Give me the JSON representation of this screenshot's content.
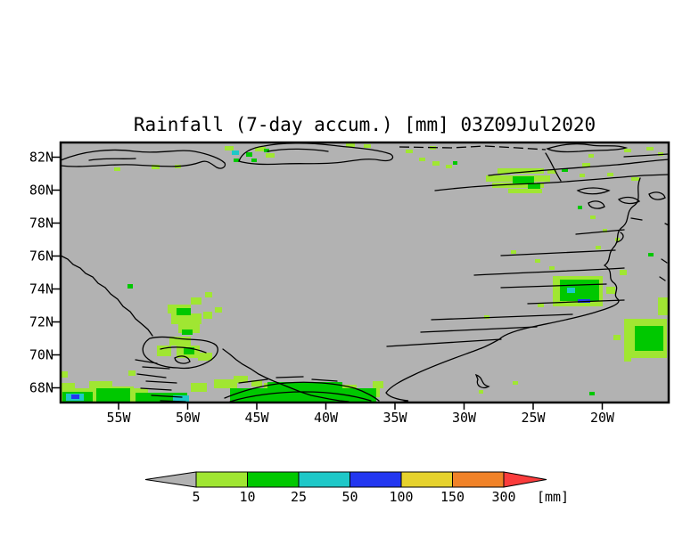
{
  "title": "Rainfall (7-day accum.) [mm] 03Z09Jul2020",
  "chart_data": {
    "type": "heatmap",
    "title": "Rainfall (7-day accum.) [mm] 03Z09Jul2020",
    "variable": "Rainfall (7-day accum.)",
    "units": "mm",
    "valid_time": "03Z09Jul2020",
    "x_axis": {
      "ticks": [
        "55W",
        "50W",
        "45W",
        "40W",
        "35W",
        "30W",
        "25W",
        "20W"
      ]
    },
    "y_axis": {
      "ticks": [
        "82N",
        "80N",
        "78N",
        "76N",
        "74N",
        "72N",
        "70N",
        "68N"
      ]
    },
    "grid": "off",
    "legend_position": "bottom",
    "colorbar": {
      "levels": [
        5,
        10,
        25,
        50,
        100,
        150,
        300
      ],
      "labels": [
        "5",
        "10",
        "25",
        "50",
        "100",
        "150",
        "300"
      ],
      "unit_label": "[mm]",
      "below_color": "#b2b2b2",
      "bin_colors": [
        "#a0e632",
        "#00c800",
        "#1ec8c8",
        "#2337f0",
        "#e6d22d",
        "#f08228"
      ],
      "above_color": "#fa3c3c",
      "outline_color": "#000000"
    },
    "background_color": "#b2b2b2",
    "coastline_color": "#000000"
  },
  "map": {
    "bg": "#b2b2b2",
    "coast_color": "#000000",
    "coastlines": [
      "M68,180 C92,170 122,166 152,170 C178,173 202,167 218,170 C234,173 247,178 252,183 C254,187 249,191 243,188 C237,184 232,179 225,182 C204,190 176,186 148,185 C118,184 92,189 68,186",
      "M100,180 C118,177 136,179 152,178",
      "M268,181 C271,172 281,166 296,164 C316,160 346,160 371,163 C396,166 421,167 438,173 C444,177 439,182 427,180 C413,177 399,180 384,182 C364,185 339,183 317,184 C299,185 281,185 268,181 Z",
      "M300,170 C322,166 348,167 368,170",
      "M614,167 C630,162 646,160 663,163 C676,165 690,162 702,166 C688,170 668,168 650,170 C636,171 622,171 614,167 Z",
      "M612,172 C618,181 622,192 629,203",
      "M488,214 C522,210 562,207 602,206 C642,204 682,200 722,197 L750,196",
      "M548,197 C592,192 642,189 692,185 C712,183 736,180 750,179",
      "M700,176 L750,173",
      "M648,214 C658,210 672,210 683,214 C672,219 656,219 648,214 Z",
      "M694,224 C702,220 712,221 717,226 C710,230 698,229 694,224 Z",
      "M660,228 C668,224 676,226 678,232 C671,236 661,234 660,228 Z",
      "M718,200 C712,214 721,224 711,231 C701,238 707,248 698,255 C689,262 696,270 688,278 C681,286 686,292 678,298",
      "M700,258 L646,263",
      "M690,281 L562,287",
      "M700,301 C650,304 590,306 532,309",
      "M680,319 L562,323",
      "M700,337 L592,341",
      "M642,353 L484,359",
      "M602,367 L472,373",
      "M562,381 L434,389",
      "M678,298 C690,306 680,312 689,318 C696,325 686,330 693,336 C699,342 676,348 663,352 C642,358 621,362 602,366 C582,370 566,375 560,381 C551,386 545,389 540,391",
      "M540,391 C519,399 489,409 464,421 C449,428 438,434 433,441 C437,447 449,449 458,450 L447,452",
      "M534,421 C543,424 538,431 548,434 C541,438 533,433 536,426 Z",
      "M68,287 L76,291 L82,297 L90,301 L96,307 L104,311 L110,318 L118,323 L124,330 L132,336 L138,344 L146,350 L152,358 L158,363 L166,370 L171,377",
      "M168,380 C159,386 157,396 166,403 C173,409 187,413 199,413 C213,415 227,411 237,404 C245,398 247,390 240,386 C229,380 213,382 199,380 C187,378 176,378 168,380 Z",
      "M180,392 C196,388 216,390 231,396",
      "M250,392 L258,398 L265,404 L272,409 L281,414 L290,420 L298,424 L307,428 L317,432 L327,436 L337,440 L349,444 L359,446 L369,448 L381,450 L391,451",
      "M152,404 L176,408 M160,412 L190,414 M154,420 L186,424 M164,428 L198,430 M158,436 L192,438 M170,444 L204,446 M180,450 L208,451",
      "M196,402 C204,398 211,400 213,406 C207,410 197,408 196,402 Z",
      "M252,447 C271,439 296,432 321,430 C346,428 376,430 398,436 C410,440 420,446 425,450",
      "M258,451 C281,444 311,440 341,440 C371,440 396,444 416,450",
      "M268,430 L300,426 M310,424 L340,423 M350,426 L378,428",
      "M728,218 C736,214 744,216 746,222 C738,226 730,224 728,218 Z",
      "M708,245 L720,247 M696,261 C702,265 698,270 692,272 M746,251 L750,253 M742,291 L748,295 M740,311 L746,315"
    ],
    "coastlines_dashed": [
      "M448,165 L506,166 L544,164 L580,166 L612,168"
    ],
    "patches": [
      {
        "color": "#a0e632",
        "rects": [
          [
            68,
            417,
            8,
            7
          ],
          [
            68,
            430,
            16,
            22
          ],
          [
            82,
            436,
            22,
            16
          ],
          [
            100,
            428,
            26,
            24
          ],
          [
            124,
            434,
            26,
            18
          ],
          [
            144,
            416,
            8,
            6
          ],
          [
            148,
            436,
            18,
            16
          ],
          [
            214,
            430,
            18,
            10
          ],
          [
            240,
            426,
            26,
            10
          ],
          [
            262,
            422,
            16,
            8
          ],
          [
            282,
            427,
            12,
            7
          ],
          [
            296,
            430,
            30,
            8
          ],
          [
            380,
            432,
            20,
            8
          ],
          [
            404,
            436,
            22,
            10
          ],
          [
            418,
            428,
            12,
            8
          ],
          [
            176,
            388,
            16,
            12
          ],
          [
            188,
            342,
            26,
            10
          ],
          [
            192,
            352,
            34,
            12
          ],
          [
            200,
            364,
            24,
            10
          ],
          [
            214,
            334,
            12,
            8
          ],
          [
            228,
            350,
            10,
            8
          ],
          [
            190,
            378,
            24,
            10
          ],
          [
            198,
            388,
            26,
            14
          ],
          [
            222,
            396,
            16,
            9
          ],
          [
            230,
            328,
            8,
            6
          ],
          [
            241,
            345,
            8,
            6
          ],
          [
            252,
            164,
            10,
            5
          ],
          [
            286,
            165,
            12,
            5
          ],
          [
            298,
            172,
            10,
            5
          ],
          [
            170,
            185,
            9,
            5
          ],
          [
            128,
            188,
            7,
            4
          ],
          [
            196,
            185,
            7,
            4
          ],
          [
            388,
            161,
            10,
            4
          ],
          [
            408,
            162,
            8,
            4
          ],
          [
            455,
            168,
            8,
            4
          ],
          [
            470,
            177,
            7,
            4
          ],
          [
            482,
            164,
            7,
            4
          ],
          [
            558,
            189,
            52,
            6
          ],
          [
            545,
            197,
            72,
            7
          ],
          [
            552,
            205,
            58,
            6
          ],
          [
            570,
            212,
            38,
            5
          ],
          [
            614,
            190,
            10,
            5
          ],
          [
            485,
            181,
            8,
            5
          ],
          [
            500,
            185,
            7,
            4
          ],
          [
            653,
            183,
            9,
            5
          ],
          [
            681,
            194,
            7,
            4
          ],
          [
            650,
            195,
            6,
            4
          ],
          [
            708,
            199,
            9,
            4
          ],
          [
            725,
            165,
            8,
            4
          ],
          [
            738,
            171,
            6,
            4
          ],
          [
            700,
            167,
            8,
            4
          ],
          [
            660,
            173,
            6,
            4
          ],
          [
            620,
            310,
            56,
            34
          ],
          [
            680,
            322,
            10,
            8
          ],
          [
            695,
            303,
            8,
            6
          ],
          [
            573,
            281,
            6,
            4
          ],
          [
            600,
            291,
            6,
            4
          ],
          [
            616,
            299,
            6,
            4
          ],
          [
            543,
            354,
            6,
            4
          ],
          [
            603,
            341,
            7,
            4
          ],
          [
            700,
            358,
            48,
            44
          ],
          [
            738,
            334,
            12,
            20
          ],
          [
            700,
            400,
            8,
            6
          ],
          [
            688,
            376,
            8,
            6
          ],
          [
            662,
            242,
            6,
            4
          ],
          [
            676,
            257,
            5,
            4
          ],
          [
            668,
            276,
            6,
            4
          ],
          [
            690,
            267,
            5,
            4
          ],
          [
            575,
            428,
            6,
            4
          ],
          [
            537,
            438,
            5,
            4
          ]
        ]
      },
      {
        "color": "#00c800",
        "rects": [
          [
            70,
            440,
            34,
            11
          ],
          [
            108,
            436,
            38,
            15
          ],
          [
            152,
            441,
            58,
            10
          ],
          [
            258,
            436,
            164,
            15
          ],
          [
            300,
            429,
            84,
            8
          ],
          [
            390,
            444,
            30,
            8
          ],
          [
            198,
            346,
            16,
            8
          ],
          [
            204,
            370,
            12,
            6
          ],
          [
            206,
            390,
            12,
            8
          ],
          [
            143,
            319,
            6,
            5
          ],
          [
            276,
            171,
            7,
            5
          ],
          [
            282,
            178,
            6,
            4
          ],
          [
            296,
            167,
            6,
            4
          ],
          [
            262,
            178,
            6,
            4
          ],
          [
            575,
            198,
            24,
            8
          ],
          [
            592,
            206,
            14,
            6
          ],
          [
            630,
            189,
            7,
            4
          ],
          [
            508,
            181,
            5,
            4
          ],
          [
            628,
            314,
            44,
            24
          ],
          [
            727,
            284,
            6,
            4
          ],
          [
            712,
            366,
            32,
            28
          ],
          [
            661,
            440,
            6,
            4
          ],
          [
            648,
            231,
            5,
            4
          ]
        ]
      },
      {
        "color": "#1ec8c8",
        "rects": [
          [
            74,
            442,
            20,
            8
          ],
          [
            194,
            444,
            18,
            8
          ],
          [
            260,
            169,
            8,
            5
          ],
          [
            636,
            323,
            9,
            6
          ]
        ]
      },
      {
        "color": "#2337f0",
        "rects": [
          [
            80,
            443,
            9,
            5
          ],
          [
            648,
            336,
            14,
            4
          ]
        ]
      }
    ]
  }
}
